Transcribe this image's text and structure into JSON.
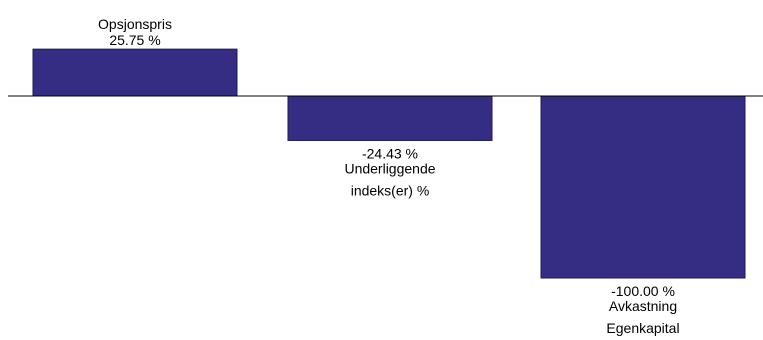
{
  "chart_data": {
    "type": "bar",
    "categories": [
      [
        "Opsjonspris"
      ],
      [
        "Underliggende",
        "indeks(er) %"
      ],
      [
        "Avkastning",
        "Egenkapital"
      ]
    ],
    "values": [
      25.75,
      -24.43,
      -100.0
    ],
    "value_labels": [
      "25.75 %",
      "-24.43 %",
      "-100.00 %"
    ],
    "ylim": [
      -100,
      25.75
    ],
    "grid": false,
    "legend": "none",
    "colors": {
      "bar": "#352D84",
      "bar_stroke": "#1E1A55",
      "axis": "#000000"
    }
  }
}
